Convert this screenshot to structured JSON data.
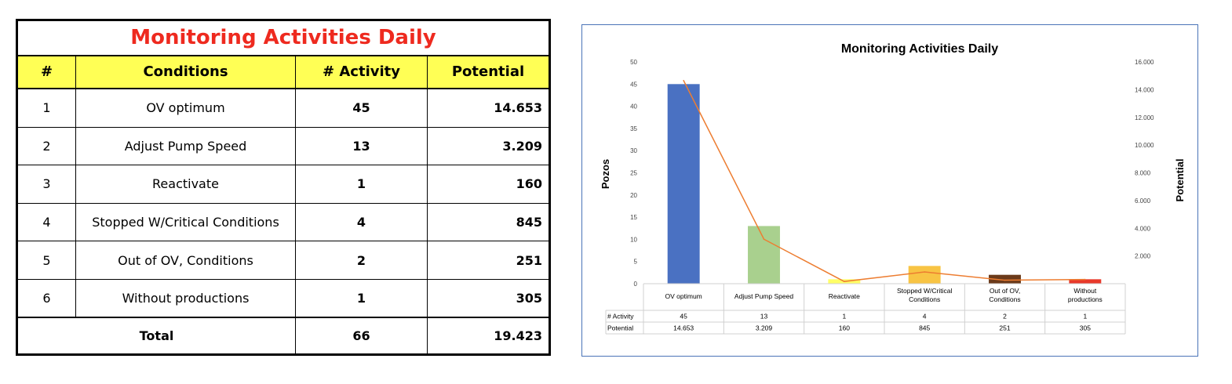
{
  "table": {
    "title": "Monitoring Activities Daily",
    "headers": [
      "#",
      "Conditions",
      "# Activity",
      "Potential"
    ],
    "rows": [
      {
        "num": "1",
        "condition": "OV optimum",
        "activity": "45",
        "potential": "14.653"
      },
      {
        "num": "2",
        "condition": "Adjust Pump Speed",
        "activity": "13",
        "potential": "3.209"
      },
      {
        "num": "3",
        "condition": "Reactivate",
        "activity": "1",
        "potential": "160"
      },
      {
        "num": "4",
        "condition": "Stopped W/Critical Conditions",
        "activity": "4",
        "potential": "845"
      },
      {
        "num": "5",
        "condition": "Out of OV, Conditions",
        "activity": "2",
        "potential": "251"
      },
      {
        "num": "6",
        "condition": "Without productions",
        "activity": "1",
        "potential": "305"
      }
    ],
    "total": {
      "label": "Total",
      "activity": "66",
      "potential": "19.423"
    }
  },
  "chart_data": {
    "type": "bar",
    "title": "Monitoring Activities Daily",
    "categories": [
      [
        "OV optimum"
      ],
      [
        "Adjust Pump Speed"
      ],
      [
        "Reactivate"
      ],
      [
        "Stopped W/Critical",
        "Conditions"
      ],
      [
        "Out of OV,",
        "Conditions"
      ],
      [
        "Without",
        "productions"
      ]
    ],
    "series": [
      {
        "name": "# Activity",
        "axis": "left",
        "kind": "bar",
        "values": [
          45,
          13,
          1,
          4,
          2,
          1
        ],
        "labels": [
          "45",
          "13",
          "1",
          "4",
          "2",
          "1"
        ]
      },
      {
        "name": "Potential",
        "axis": "right",
        "kind": "line",
        "values": [
          14653,
          3209,
          160,
          845,
          251,
          305
        ],
        "labels": [
          "14.653",
          "3.209",
          "160",
          "845",
          "251",
          "305"
        ]
      }
    ],
    "bar_colors": [
      "#4a71c2",
      "#a9d08e",
      "#ffff66",
      "#f8c444",
      "#6b3a1a",
      "#e8392a"
    ],
    "line_color": "#ed7d31",
    "ylabel": "Pozos",
    "ylabel_right": "Potential",
    "ylim": [
      0,
      50
    ],
    "ylim_right": [
      0,
      16000
    ],
    "yticks": [
      "0",
      "5",
      "10",
      "15",
      "20",
      "25",
      "30",
      "35",
      "40",
      "45",
      "50"
    ],
    "yticks_right": [
      "2.000",
      "4.000",
      "6.000",
      "8.000",
      "10.000",
      "12.000",
      "14.000",
      "16.000"
    ],
    "grid": false,
    "legend": "data table"
  }
}
